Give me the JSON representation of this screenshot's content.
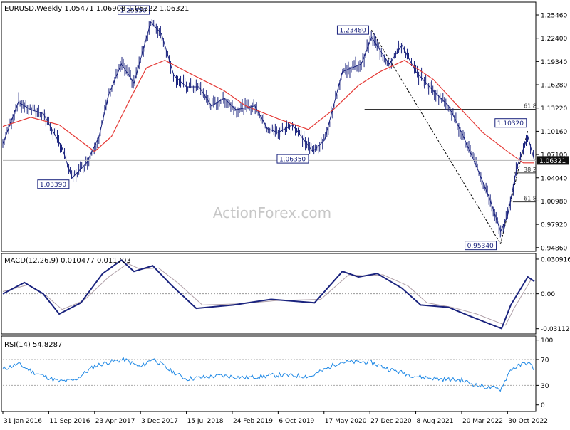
{
  "chart_data": {
    "type": "line",
    "price_panel": {
      "header": "EURUSD,Weekly  1.05471 1.06908 1.05322 1.06321",
      "watermark": "ActionForex.com",
      "y_axis_ticks": [
        "1.25460",
        "1.22400",
        "1.19340",
        "1.16280",
        "1.13220",
        "1.10160",
        "1.07100",
        "1.04040",
        "1.00980",
        "0.97920",
        "0.94860"
      ],
      "ylim": [
        0.9456,
        1.2696
      ],
      "current_price": "1.06321",
      "moving_average_color": "#e53935",
      "bar_color": "#1a237e",
      "swing_labels": [
        {
          "text": "1.25550",
          "x": "2018-01-22",
          "y": 1.2555
        },
        {
          "text": "1.23480",
          "x": "2021-01-04",
          "y": 1.2348
        },
        {
          "text": "1.03390",
          "x": "2017-01-02",
          "y": 1.0339
        },
        {
          "text": "1.06350",
          "x": "2020-03-23",
          "y": 1.0635
        },
        {
          "text": "1.10320",
          "x": "2023-02-06",
          "y": 1.1032
        },
        {
          "text": "0.95340",
          "x": "2022-09-26",
          "y": 0.9534
        }
      ],
      "fib_levels": [
        {
          "label": "61.8",
          "y": 1.1305
        },
        {
          "label": "38.2",
          "y": 1.0468
        },
        {
          "label": "61.8",
          "y": 1.0087
        }
      ],
      "price_series": [
        [
          "2016-01-31",
          1.085
        ],
        [
          "2016-04-15",
          1.14
        ],
        [
          "2016-06-15",
          1.13
        ],
        [
          "2016-08-15",
          1.125
        ],
        [
          "2016-11-15",
          1.08
        ],
        [
          "2017-01-02",
          1.04
        ],
        [
          "2017-03-15",
          1.06
        ],
        [
          "2017-05-15",
          1.095
        ],
        [
          "2017-07-01",
          1.15
        ],
        [
          "2017-09-01",
          1.19
        ],
        [
          "2017-11-01",
          1.165
        ],
        [
          "2018-01-22",
          1.245
        ],
        [
          "2018-03-15",
          1.23
        ],
        [
          "2018-05-15",
          1.175
        ],
        [
          "2018-07-15",
          1.16
        ],
        [
          "2018-09-15",
          1.16
        ],
        [
          "2018-11-15",
          1.135
        ],
        [
          "2019-01-15",
          1.145
        ],
        [
          "2019-03-15",
          1.13
        ],
        [
          "2019-06-15",
          1.135
        ],
        [
          "2019-08-15",
          1.105
        ],
        [
          "2019-10-06",
          1.1
        ],
        [
          "2019-12-15",
          1.11
        ],
        [
          "2020-03-23",
          1.075
        ],
        [
          "2020-05-20",
          1.09
        ],
        [
          "2020-08-15",
          1.18
        ],
        [
          "2020-11-15",
          1.19
        ],
        [
          "2021-01-04",
          1.225
        ],
        [
          "2021-04-01",
          1.19
        ],
        [
          "2021-06-01",
          1.215
        ],
        [
          "2021-08-08",
          1.18
        ],
        [
          "2021-11-01",
          1.155
        ],
        [
          "2022-01-15",
          1.135
        ],
        [
          "2022-03-20",
          1.1
        ],
        [
          "2022-06-01",
          1.055
        ],
        [
          "2022-08-01",
          1.015
        ],
        [
          "2022-09-26",
          0.97
        ],
        [
          "2022-10-30",
          0.99
        ],
        [
          "2022-12-15",
          1.055
        ],
        [
          "2023-02-06",
          1.095
        ],
        [
          "2023-03-10",
          1.063
        ]
      ],
      "moving_average_series": [
        [
          "2016-01-31",
          1.108
        ],
        [
          "2016-06-15",
          1.12
        ],
        [
          "2016-11-01",
          1.11
        ],
        [
          "2017-04-23",
          1.075
        ],
        [
          "2017-07-15",
          1.095
        ],
        [
          "2017-10-15",
          1.145
        ],
        [
          "2018-01-01",
          1.185
        ],
        [
          "2018-04-01",
          1.195
        ],
        [
          "2018-07-15",
          1.18
        ],
        [
          "2019-01-15",
          1.155
        ],
        [
          "2019-05-01",
          1.135
        ],
        [
          "2019-10-06",
          1.118
        ],
        [
          "2020-03-01",
          1.104
        ],
        [
          "2020-07-01",
          1.13
        ],
        [
          "2020-11-01",
          1.162
        ],
        [
          "2021-02-15",
          1.18
        ],
        [
          "2021-06-15",
          1.195
        ],
        [
          "2021-11-01",
          1.17
        ],
        [
          "2022-03-01",
          1.135
        ],
        [
          "2022-07-01",
          1.1
        ],
        [
          "2022-10-30",
          1.075
        ],
        [
          "2023-01-15",
          1.06
        ],
        [
          "2023-03-10",
          1.06
        ]
      ]
    },
    "macd_panel": {
      "header": "MACD(12,26,9) 0.010477 0.011703",
      "y_axis_ticks": [
        "0.030916",
        "0.00",
        "-0.031124"
      ],
      "ylim": [
        -0.0345,
        0.0347
      ],
      "macd_color": "#1a237e",
      "signal_color": "#b0a0a8",
      "macd_series": [
        [
          "2016-01-31",
          0.0
        ],
        [
          "2016-05-15",
          0.01
        ],
        [
          "2016-08-15",
          0.0
        ],
        [
          "2016-11-01",
          -0.018
        ],
        [
          "2017-02-15",
          -0.008
        ],
        [
          "2017-06-01",
          0.018
        ],
        [
          "2017-09-01",
          0.03
        ],
        [
          "2017-11-01",
          0.02
        ],
        [
          "2018-02-01",
          0.025
        ],
        [
          "2018-05-01",
          0.008
        ],
        [
          "2018-09-01",
          -0.013
        ],
        [
          "2019-03-01",
          -0.01
        ],
        [
          "2019-09-01",
          -0.005
        ],
        [
          "2020-04-01",
          -0.008
        ],
        [
          "2020-08-15",
          0.02
        ],
        [
          "2020-11-01",
          0.015
        ],
        [
          "2021-02-01",
          0.018
        ],
        [
          "2021-06-01",
          0.005
        ],
        [
          "2021-09-01",
          -0.01
        ],
        [
          "2022-01-15",
          -0.012
        ],
        [
          "2022-05-01",
          -0.02
        ],
        [
          "2022-10-01",
          -0.031
        ],
        [
          "2022-11-15",
          -0.01
        ],
        [
          "2023-02-06",
          0.015
        ],
        [
          "2023-03-10",
          0.011
        ]
      ],
      "signal_series": [
        [
          "2016-01-31",
          0.002
        ],
        [
          "2016-06-01",
          0.008
        ],
        [
          "2016-09-01",
          -0.002
        ],
        [
          "2016-11-15",
          -0.014
        ],
        [
          "2017-03-01",
          -0.006
        ],
        [
          "2017-07-01",
          0.015
        ],
        [
          "2017-10-01",
          0.027
        ],
        [
          "2017-12-01",
          0.022
        ],
        [
          "2018-03-01",
          0.023
        ],
        [
          "2018-06-01",
          0.01
        ],
        [
          "2018-10-01",
          -0.01
        ],
        [
          "2019-04-01",
          -0.009
        ],
        [
          "2019-10-01",
          -0.006
        ],
        [
          "2020-05-01",
          -0.005
        ],
        [
          "2020-09-15",
          0.017
        ],
        [
          "2020-12-01",
          0.016
        ],
        [
          "2021-03-01",
          0.017
        ],
        [
          "2021-07-01",
          0.007
        ],
        [
          "2021-10-01",
          -0.008
        ],
        [
          "2022-02-01",
          -0.012
        ],
        [
          "2022-06-01",
          -0.018
        ],
        [
          "2022-10-20",
          -0.028
        ],
        [
          "2022-12-01",
          -0.013
        ],
        [
          "2023-02-20",
          0.012
        ],
        [
          "2023-03-10",
          0.0117
        ]
      ]
    },
    "rsi_panel": {
      "header": "RSI(14) 54.8287",
      "y_axis_ticks": [
        "100",
        "70",
        "30",
        "0"
      ],
      "ylim": [
        -8,
        104
      ],
      "rsi_color": "#1e88e5",
      "rsi_series": [
        [
          "2016-01-31",
          55
        ],
        [
          "2016-04-15",
          63
        ],
        [
          "2016-07-01",
          50
        ],
        [
          "2016-11-01",
          36
        ],
        [
          "2017-01-15",
          38
        ],
        [
          "2017-04-23",
          60
        ],
        [
          "2017-07-01",
          66
        ],
        [
          "2017-09-15",
          70
        ],
        [
          "2017-12-03",
          58
        ],
        [
          "2018-02-01",
          72
        ],
        [
          "2018-05-01",
          52
        ],
        [
          "2018-07-15",
          40
        ],
        [
          "2019-01-01",
          45
        ],
        [
          "2019-05-01",
          42
        ],
        [
          "2019-10-06",
          46
        ],
        [
          "2020-03-15",
          44
        ],
        [
          "2020-08-01",
          66
        ],
        [
          "2020-12-27",
          66
        ],
        [
          "2021-04-01",
          55
        ],
        [
          "2021-08-08",
          44
        ],
        [
          "2021-12-01",
          40
        ],
        [
          "2022-03-20",
          38
        ],
        [
          "2022-06-01",
          30
        ],
        [
          "2022-09-26",
          24
        ],
        [
          "2022-11-15",
          55
        ],
        [
          "2023-02-06",
          66
        ],
        [
          "2023-03-10",
          54.8
        ]
      ]
    },
    "x_axis": {
      "range": [
        "2016-01-31",
        "2023-03-10"
      ],
      "ticks": [
        {
          "label": "31 Jan 2016",
          "date": "2016-01-31"
        },
        {
          "label": "11 Sep 2016",
          "date": "2016-09-11"
        },
        {
          "label": "23 Apr 2017",
          "date": "2017-04-23"
        },
        {
          "label": "3 Dec 2017",
          "date": "2017-12-03"
        },
        {
          "label": "15 Jul 2018",
          "date": "2018-07-15"
        },
        {
          "label": "24 Feb 2019",
          "date": "2019-02-24"
        },
        {
          "label": "6 Oct 2019",
          "date": "2019-10-06"
        },
        {
          "label": "17 May 2020",
          "date": "2020-05-17"
        },
        {
          "label": "27 Dec 2020",
          "date": "2020-12-27"
        },
        {
          "label": "8 Aug 2021",
          "date": "2021-08-08"
        },
        {
          "label": "20 Mar 2022",
          "date": "2022-03-20"
        },
        {
          "label": "30 Oct 2022",
          "date": "2022-10-30"
        }
      ]
    }
  }
}
